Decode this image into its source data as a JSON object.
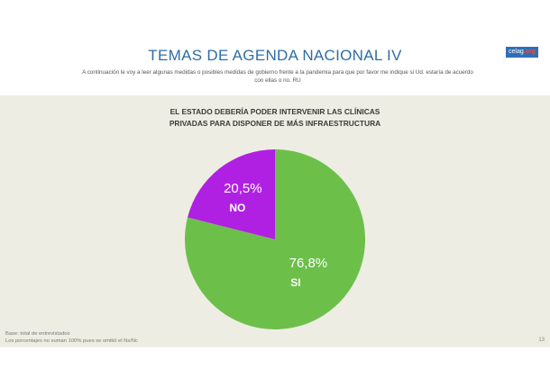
{
  "header": {
    "title": "TEMAS DE AGENDA NACIONAL IV",
    "subtitle": "A continuación le voy a leer algunas medidas o posibles medidas de gobierno frente a la pandemia para que por favor me indique si Ud. estaría de acuerdo con ellas o no. RU",
    "logo_main": "celag",
    "logo_tld": ".org"
  },
  "chart_data": {
    "type": "pie",
    "title_lines": [
      "EL ESTADO DEBERÍA PODER INTERVENIR LAS CLÍNICAS",
      "PRIVADAS PARA DISPONER DE MÁS INFRAESTRUCTURA"
    ],
    "slices": [
      {
        "label": "SI",
        "value": 76.8,
        "value_label": "76,8%",
        "color": "#6cc04a"
      },
      {
        "label": "NO",
        "value": 20.5,
        "value_label": "20,5%",
        "color": "#b020e3"
      }
    ]
  },
  "footer": {
    "note_line1": "Base: total de entrevistados",
    "note_line2": "Los porcentajes no suman 100% pues se omitió el Ns/Nc",
    "page_number": "13"
  }
}
